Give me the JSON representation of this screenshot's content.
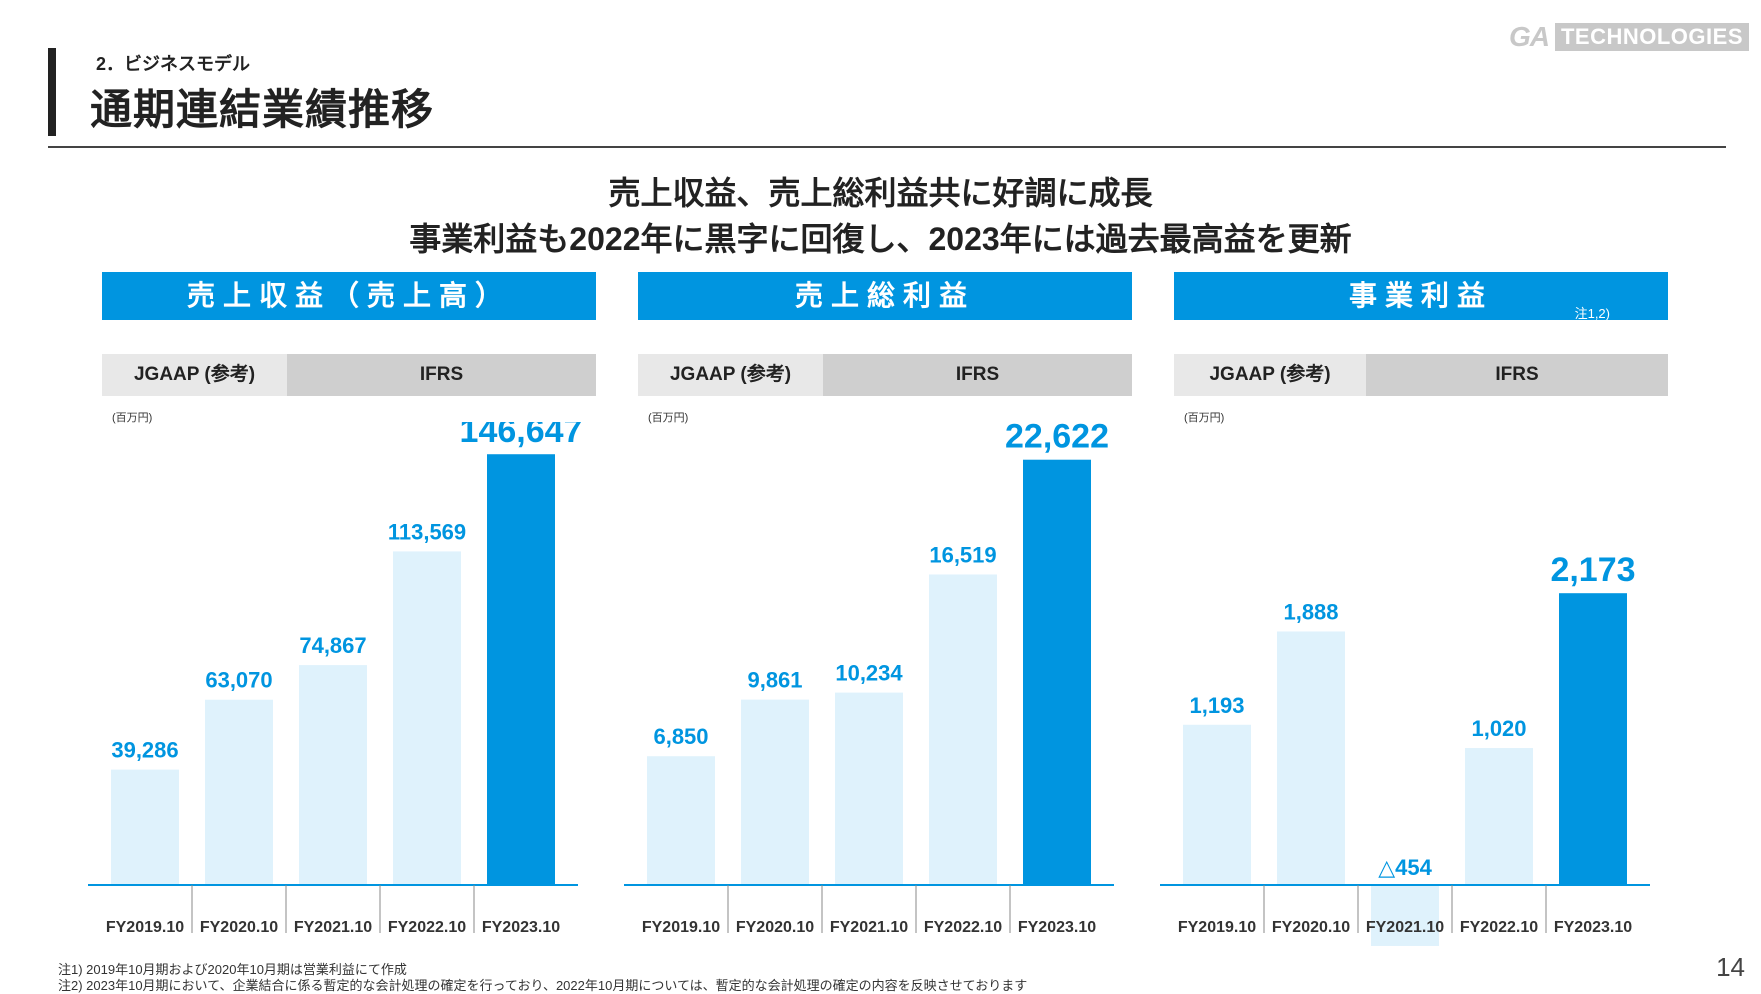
{
  "header": {
    "section_label": "2．ビジネスモデル",
    "title": "通期連結業績推移",
    "logo_ga": "GA",
    "logo_tech": "TECHNOLOGIES"
  },
  "headline": {
    "line1": "売上収益、売上総利益共に好調に成長",
    "line2": "事業利益も2022年に黒字に回復し、2023年には過去最高益を更新"
  },
  "colors": {
    "accent": "#0095e0",
    "bar_light": "#dff2fc",
    "standard_jgaap_bg": "#e8e8e8",
    "standard_ifrs_bg": "#cfcfcf"
  },
  "chart_data": [
    {
      "type": "bar",
      "title": "売上収益（売上高）",
      "title_note": "",
      "unit": "(百万円)",
      "standards": {
        "jgaap": "JGAAP (参考)",
        "ifrs": "IFRS"
      },
      "categories": [
        "FY2019.10",
        "FY2020.10",
        "FY2021.10",
        "FY2022.10",
        "FY2023.10"
      ],
      "values": [
        39286,
        63070,
        74867,
        113569,
        146647
      ],
      "labels": [
        "39,286",
        "63,070",
        "74,867",
        "113,569",
        "146,647"
      ],
      "highlight_index": 4,
      "ylim": [
        0,
        160000
      ]
    },
    {
      "type": "bar",
      "title": "売上総利益",
      "title_note": "",
      "unit": "(百万円)",
      "standards": {
        "jgaap": "JGAAP (参考)",
        "ifrs": "IFRS"
      },
      "categories": [
        "FY2019.10",
        "FY2020.10",
        "FY2021.10",
        "FY2022.10",
        "FY2023.10"
      ],
      "values": [
        6850,
        9861,
        10234,
        16519,
        22622
      ],
      "labels": [
        "6,850",
        "9,861",
        "10,234",
        "16,519",
        "22,622"
      ],
      "highlight_index": 4,
      "ylim": [
        0,
        25000
      ]
    },
    {
      "type": "bar",
      "title": "事業利益",
      "title_note": "注1,2)",
      "unit": "(百万円)",
      "standards": {
        "jgaap": "JGAAP (参考)",
        "ifrs": "IFRS"
      },
      "categories": [
        "FY2019.10",
        "FY2020.10",
        "FY2021.10",
        "FY2022.10",
        "FY2023.10"
      ],
      "values": [
        1193,
        1888,
        -454,
        1020,
        2173
      ],
      "labels": [
        "1,193",
        "1,888",
        "△454",
        "1,020",
        "2,173"
      ],
      "highlight_index": 4,
      "ylim": [
        -600,
        3500
      ]
    }
  ],
  "footnotes": [
    "注1) 2019年10月期および2020年10月期は営業利益にて作成",
    "注2) 2023年10月期において、企業結合に係る暫定的な会計処理の確定を行っており、2022年10月期については、暫定的な会計処理の確定の内容を反映させております"
  ],
  "page_number": "14"
}
